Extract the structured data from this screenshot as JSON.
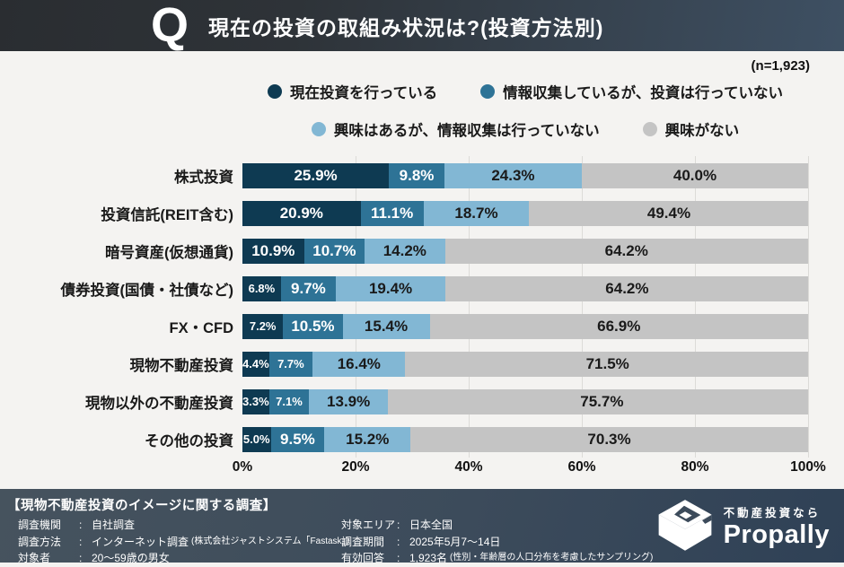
{
  "header": {
    "q_mark": "Q",
    "title": "現在の投資の取組み状況は?(投資方法別)"
  },
  "n_label": "(n=1,923)",
  "colors": {
    "dark_navy": "#0e3a52",
    "mid_blue": "#2e7396",
    "light_blue": "#82b7d4",
    "gray": "#c4c4c4",
    "grid": "#dcdbd8"
  },
  "legend_rows": [
    [
      {
        "label": "現在投資を行っている",
        "color": "#0e3a52"
      },
      {
        "label": "情報収集しているが、投資は行っていない",
        "color": "#2e7396"
      }
    ],
    [
      {
        "label": "興味はあるが、情報収集は行っていない",
        "color": "#82b7d4"
      },
      {
        "label": "興味がない",
        "color": "#c4c4c4"
      }
    ]
  ],
  "chart_data": {
    "type": "bar",
    "stacked": true,
    "orientation": "horizontal",
    "title": "現在の投資の取組み状況は?(投資方法別)",
    "n": 1923,
    "categories": [
      "株式投資",
      "投資信託(REIT含む)",
      "暗号資産(仮想通貨)",
      "債券投資(国債・社債など)",
      "FX・CFD",
      "現物不動産投資",
      "現物以外の不動産投資",
      "その他の投資"
    ],
    "series": [
      {
        "name": "現在投資を行っている",
        "color": "#0e3a52",
        "text_color": "#ffffff",
        "values": [
          25.9,
          20.9,
          10.9,
          6.8,
          7.2,
          4.4,
          3.3,
          5.0
        ]
      },
      {
        "name": "情報収集しているが、投資は行っていない",
        "color": "#2e7396",
        "text_color": "#ffffff",
        "values": [
          9.8,
          11.1,
          10.7,
          9.7,
          10.5,
          7.7,
          7.1,
          9.5
        ]
      },
      {
        "name": "興味はあるが、情報収集は行っていない",
        "color": "#82b7d4",
        "text_color": "#1a1a1a",
        "values": [
          24.3,
          18.7,
          14.2,
          19.4,
          15.4,
          16.4,
          13.9,
          15.2
        ]
      },
      {
        "name": "興味がない",
        "color": "#c4c4c4",
        "text_color": "#1a1a1a",
        "values": [
          40.0,
          49.4,
          64.2,
          64.2,
          66.9,
          71.5,
          75.7,
          70.3
        ]
      }
    ],
    "x_ticks": [
      "0%",
      "20%",
      "40%",
      "60%",
      "80%",
      "100%"
    ],
    "xlim": [
      0,
      100
    ],
    "grid": true,
    "legend_position": "top"
  },
  "footer": {
    "title": "【現物不動産投資のイメージに関する調査】",
    "colon": ":",
    "left_rows": [
      {
        "label": "調査機関",
        "value": "自社調査",
        "note": ""
      },
      {
        "label": "調査方法",
        "value": "インターネット調査",
        "note": "(株式会社ジャストシステム「Fastask」)"
      },
      {
        "label": "対象者",
        "value": "20〜59歳の男女",
        "note": ""
      }
    ],
    "mid_rows": [
      {
        "label": "対象エリア",
        "value": "日本全国",
        "note": ""
      },
      {
        "label": "調査期間",
        "value": "2025年5月7〜14日",
        "note": ""
      },
      {
        "label": "有効回答",
        "value": "1,923名",
        "note": "(性別・年齢層の人口分布を考慮したサンプリング)"
      }
    ],
    "logo": {
      "tagline": "不動産投資なら",
      "brand": "Propally"
    }
  }
}
